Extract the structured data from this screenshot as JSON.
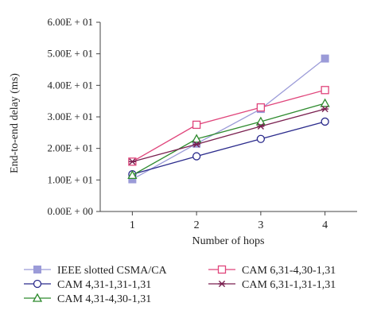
{
  "chart_data": {
    "type": "line",
    "xlabel": "Number of hops",
    "ylabel": "End-to-end delay (ms)",
    "x": [
      1,
      2,
      3,
      4
    ],
    "xlim": [
      0.5,
      4.5
    ],
    "ylim": [
      0,
      60
    ],
    "y_ticks": [
      0,
      10,
      20,
      30,
      40,
      50,
      60
    ],
    "y_tick_labels": [
      "0.00E + 00",
      "1.00E + 01",
      "2.00E + 01",
      "3.00E + 01",
      "4.00E + 01",
      "5.00E + 01",
      "6.00E + 01"
    ],
    "x_tick_labels": [
      "1",
      "2",
      "3",
      "4"
    ],
    "grid": false,
    "legend_position": "bottom",
    "series": [
      {
        "name": "IEEE slotted CSMA/CA",
        "values": [
          10.2,
          21.5,
          32.5,
          48.5
        ],
        "color": "#9b9bd8",
        "marker": "filled-square"
      },
      {
        "name": "CAM 4,31-1,31-1,31",
        "values": [
          11.8,
          17.5,
          23.0,
          28.5
        ],
        "color": "#2b2b8c",
        "marker": "circle"
      },
      {
        "name": "CAM 4,31-4,30-1,31",
        "values": [
          11.5,
          23.0,
          28.5,
          34.3
        ],
        "color": "#2e8b2e",
        "marker": "triangle"
      },
      {
        "name": "CAM 6,31-4,30-1,31",
        "values": [
          15.8,
          27.5,
          33.0,
          38.5
        ],
        "color": "#e0457b",
        "marker": "square"
      },
      {
        "name": "CAM 6,31-1,31-1,31",
        "values": [
          15.8,
          21.3,
          27.0,
          32.5
        ],
        "color": "#7a2050",
        "marker": "star"
      }
    ]
  }
}
